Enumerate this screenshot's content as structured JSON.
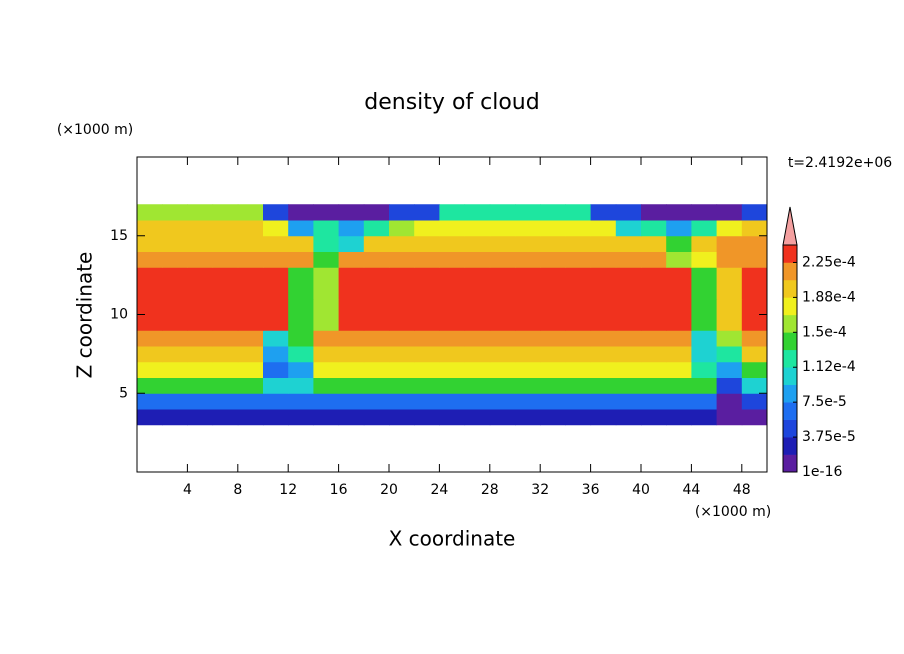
{
  "chart_data": {
    "type": "contour",
    "title": "density of cloud",
    "xlabel": "X coordinate",
    "ylabel": "Z coordinate",
    "xunit": "(×1000 m)",
    "yunit": "(×1000 m)",
    "time_label": "t=2.4192e+06",
    "xlim": [
      0,
      50
    ],
    "ylim": [
      0,
      20
    ],
    "xticks": [
      4,
      8,
      12,
      16,
      20,
      24,
      28,
      32,
      36,
      40,
      44,
      48
    ],
    "yticks": [
      5,
      10,
      15
    ],
    "levels": [
      1e-16,
      1.875e-05,
      3.75e-05,
      5.625e-05,
      7.5e-05,
      9.375e-05,
      0.0001125,
      0.00013125,
      0.00015,
      0.00016875,
      0.0001875,
      0.00020625,
      0.000225,
      0.00024375
    ],
    "colors": [
      "#5a1ea0",
      "#1e1eb4",
      "#1e46dc",
      "#1e6ef0",
      "#1ea0f0",
      "#1ed2d2",
      "#1ee6a0",
      "#32d232",
      "#a0e632",
      "#f0f01e",
      "#f0c81e",
      "#f09628",
      "#f0321e"
    ],
    "extend_color": "#f4a0a0",
    "colorbar_ticks": [
      {
        "value": 0.000225,
        "label": "2.25e-4"
      },
      {
        "value": 0.0001875,
        "label": "1.88e-4"
      },
      {
        "value": 0.00015,
        "label": "1.5e-4"
      },
      {
        "value": 0.0001125,
        "label": "1.12e-4"
      },
      {
        "value": 7.5e-05,
        "label": "7.5e-5"
      },
      {
        "value": 3.75e-05,
        "label": "3.75e-5"
      },
      {
        "value": 1e-16,
        "label": "1e-16"
      }
    ],
    "field": {
      "x": [
        1,
        3,
        5,
        7,
        9,
        11,
        13,
        15,
        17,
        19,
        21,
        23,
        25,
        27,
        29,
        31,
        33,
        35,
        37,
        39,
        41,
        43,
        45,
        47,
        49
      ],
      "y": [
        3.5,
        4.5,
        5.5,
        6.5,
        7.5,
        8.5,
        9.5,
        10.5,
        11.5,
        12.5,
        13.5,
        14.5,
        15.5,
        16.5
      ],
      "z": [
        [
          2e-05,
          2e-05,
          2e-05,
          2e-05,
          2e-05,
          2e-05,
          2e-05,
          2e-05,
          2e-05,
          2e-05,
          2e-05,
          2e-05,
          2e-05,
          2e-05,
          2e-05,
          2e-05,
          2e-05,
          2e-05,
          2e-05,
          2e-05,
          2e-05,
          2e-05,
          2e-05,
          1e-05,
          1e-05
        ],
        [
          6e-05,
          6e-05,
          6e-05,
          6e-05,
          6e-05,
          6e-05,
          6e-05,
          6e-05,
          6e-05,
          6e-05,
          6e-05,
          6e-05,
          6e-05,
          6e-05,
          6e-05,
          6e-05,
          6e-05,
          6e-05,
          6e-05,
          6e-05,
          6e-05,
          6e-05,
          6e-05,
          5e-06,
          4e-05
        ],
        [
          0.00014,
          0.00014,
          0.00014,
          0.00014,
          0.00014,
          0.0001,
          0.0001,
          0.00014,
          0.00014,
          0.00014,
          0.00014,
          0.00014,
          0.00014,
          0.00014,
          0.00014,
          0.00014,
          0.00014,
          0.00014,
          0.00014,
          0.00014,
          0.00014,
          0.00014,
          0.00014,
          4e-05,
          0.0001
        ],
        [
          0.000175,
          0.000175,
          0.000175,
          0.000175,
          0.000175,
          6e-05,
          8e-05,
          0.000175,
          0.000175,
          0.000175,
          0.000175,
          0.000175,
          0.000175,
          0.000175,
          0.000175,
          0.000175,
          0.000175,
          0.000175,
          0.000175,
          0.000175,
          0.000175,
          0.000175,
          0.00012,
          8e-05,
          0.00014
        ],
        [
          0.000195,
          0.000195,
          0.000195,
          0.000195,
          0.000195,
          8e-05,
          0.00012,
          0.000195,
          0.000195,
          0.000195,
          0.000195,
          0.000195,
          0.000195,
          0.000195,
          0.000195,
          0.000195,
          0.000195,
          0.000195,
          0.000195,
          0.000195,
          0.000195,
          0.000195,
          0.0001,
          0.00012,
          0.000195
        ],
        [
          0.000215,
          0.000215,
          0.000215,
          0.000215,
          0.000215,
          0.0001,
          0.00014,
          0.000215,
          0.000215,
          0.000215,
          0.000215,
          0.000215,
          0.000215,
          0.000215,
          0.000215,
          0.000215,
          0.000215,
          0.000215,
          0.000215,
          0.000215,
          0.000215,
          0.000215,
          0.0001,
          0.00016,
          0.000215
        ],
        [
          0.00023,
          0.00023,
          0.00023,
          0.00023,
          0.00023,
          0.00023,
          0.00014,
          0.00016,
          0.00023,
          0.00023,
          0.00023,
          0.00023,
          0.00023,
          0.00023,
          0.00023,
          0.00023,
          0.00023,
          0.00023,
          0.00023,
          0.00023,
          0.00023,
          0.00023,
          0.00014,
          0.000195,
          0.00023
        ],
        [
          0.00023,
          0.00023,
          0.00023,
          0.00023,
          0.00023,
          0.00023,
          0.00014,
          0.00016,
          0.00023,
          0.00023,
          0.00023,
          0.00023,
          0.00023,
          0.00023,
          0.00023,
          0.00023,
          0.00023,
          0.00023,
          0.00023,
          0.00023,
          0.00023,
          0.00023,
          0.00014,
          0.000195,
          0.00023
        ],
        [
          0.00023,
          0.00023,
          0.00023,
          0.00023,
          0.00023,
          0.00023,
          0.00014,
          0.00016,
          0.00023,
          0.00023,
          0.00023,
          0.00023,
          0.00023,
          0.00023,
          0.00023,
          0.00023,
          0.00023,
          0.00023,
          0.00023,
          0.00023,
          0.00023,
          0.00023,
          0.00014,
          0.000195,
          0.00023
        ],
        [
          0.00023,
          0.00023,
          0.00023,
          0.00023,
          0.00023,
          0.00023,
          0.00014,
          0.00016,
          0.00023,
          0.00023,
          0.00023,
          0.00023,
          0.00023,
          0.00023,
          0.00023,
          0.00023,
          0.00023,
          0.00023,
          0.00023,
          0.00023,
          0.00023,
          0.00023,
          0.00014,
          0.000195,
          0.00023
        ],
        [
          0.000215,
          0.000215,
          0.000215,
          0.000215,
          0.000215,
          0.000215,
          0.000215,
          0.00014,
          0.000215,
          0.000215,
          0.000215,
          0.000215,
          0.000215,
          0.000215,
          0.000215,
          0.000215,
          0.000215,
          0.000215,
          0.000215,
          0.000215,
          0.000215,
          0.00016,
          0.000175,
          0.000215,
          0.000215
        ],
        [
          0.000195,
          0.000195,
          0.000195,
          0.000195,
          0.000195,
          0.000195,
          0.000195,
          0.00012,
          0.0001,
          0.000195,
          0.000195,
          0.000195,
          0.000195,
          0.000195,
          0.000195,
          0.000195,
          0.000195,
          0.000195,
          0.000195,
          0.000195,
          0.000195,
          0.00014,
          0.000195,
          0.000215,
          0.000215
        ],
        [
          0.000195,
          0.000195,
          0.000195,
          0.000195,
          0.000195,
          0.000175,
          8e-05,
          0.00012,
          8e-05,
          0.00012,
          0.00016,
          0.000175,
          0.000175,
          0.000175,
          0.000175,
          0.000175,
          0.000175,
          0.000175,
          0.000175,
          0.0001,
          0.00012,
          8e-05,
          0.00012,
          0.000175,
          0.000195
        ],
        [
          0.00016,
          0.00016,
          0.00016,
          0.00016,
          0.00016,
          4e-05,
          5e-06,
          5e-06,
          5e-06,
          5e-06,
          4e-05,
          4e-05,
          0.00012,
          0.00012,
          0.00012,
          0.00012,
          0.00012,
          0.00012,
          4e-05,
          4e-05,
          5e-06,
          5e-06,
          5e-06,
          5e-06,
          4e-05
        ]
      ]
    }
  }
}
